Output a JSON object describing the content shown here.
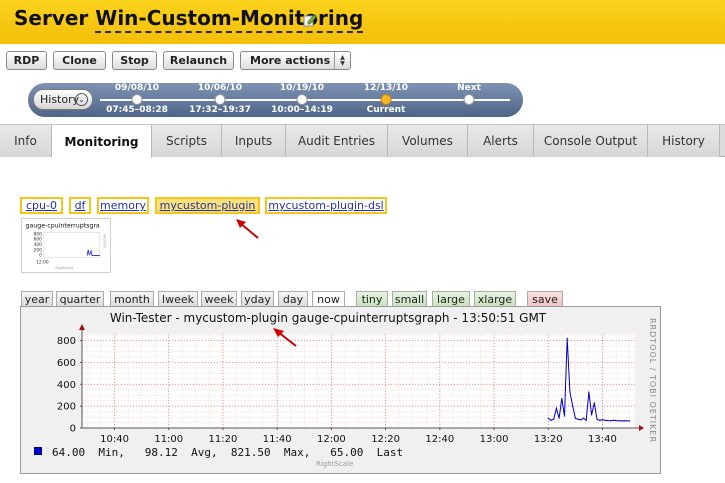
{
  "header": {
    "prefix": "Server ",
    "name": "Win-Custom-Monitoring"
  },
  "toolbar": {
    "rdp": "RDP",
    "clone": "Clone",
    "stop": "Stop",
    "relaunch": "Relaunch",
    "more_actions": "More actions"
  },
  "history": {
    "button": "History",
    "points": [
      {
        "date": "09/08/10",
        "time": "07:45–08:28",
        "current": false
      },
      {
        "date": "10/06/10",
        "time": "17:32–19:37",
        "current": false
      },
      {
        "date": "10/19/10",
        "time": "10:00–14:19",
        "current": false
      },
      {
        "date": "12/13/10",
        "time": "Current",
        "current": true
      },
      {
        "date": "Next",
        "time": "",
        "current": false
      }
    ]
  },
  "tabs": [
    "Info",
    "Monitoring",
    "Scripts",
    "Inputs",
    "Audit Entries",
    "Volumes",
    "Alerts",
    "Console Output",
    "History"
  ],
  "active_tab": "Monitoring",
  "plugins": [
    "cpu-0",
    "df",
    "memory",
    "mycustom-plugin",
    "mycustom-plugin-dsl"
  ],
  "selected_plugin": "mycustom-plugin",
  "thumbnail": {
    "label": "gauge-cpuinterruptsgra",
    "yticks": [
      "800",
      "600",
      "400",
      "200",
      "0"
    ],
    "xtick": "12:00",
    "credit": "RightScale"
  },
  "ranges": [
    "year",
    "quarter",
    "month",
    "lweek",
    "week",
    "yday",
    "day",
    "now"
  ],
  "active_range": "now",
  "sizes": [
    "tiny",
    "small",
    "large",
    "xlarge"
  ],
  "save": "save",
  "graph": {
    "title": "Win-Tester - mycustom-plugin gauge-cpuinterruptsgraph - 13:50:51 GMT",
    "side_text": "RRDTOOL / TOBI OETIKER",
    "legend": {
      "color": "#0000cc",
      "min_value": "64.00",
      "min_label": "Min,",
      "avg_value": "98.12",
      "avg_label": "Avg,",
      "max_value": "821.50",
      "max_label": "Max,",
      "last_value": "65.00",
      "last_label": "Last"
    },
    "credit": "RightScale"
  },
  "chart_data": {
    "type": "line",
    "title": "Win-Tester - mycustom-plugin gauge-cpuinterruptsgraph - 13:50:51 GMT",
    "xlabel": "",
    "ylabel": "",
    "x_ticks": [
      "10:40",
      "11:00",
      "11:20",
      "11:40",
      "12:00",
      "12:20",
      "12:40",
      "13:00",
      "13:20",
      "13:40"
    ],
    "y_ticks": [
      0,
      200,
      400,
      600,
      800
    ],
    "ylim": [
      0,
      860
    ],
    "grid": true,
    "series": [
      {
        "color": "#0000cc",
        "points": [
          [
            "13:20",
            90
          ],
          [
            "13:21",
            70
          ],
          [
            "13:22",
            80
          ],
          [
            "13:23",
            180
          ],
          [
            "13:24",
            90
          ],
          [
            "13:25",
            270
          ],
          [
            "13:26",
            110
          ],
          [
            "13:27",
            820
          ],
          [
            "13:28",
            330
          ],
          [
            "13:29",
            200
          ],
          [
            "13:30",
            90
          ],
          [
            "13:31",
            80
          ],
          [
            "13:32",
            75
          ],
          [
            "13:33",
            90
          ],
          [
            "13:34",
            70
          ],
          [
            "13:35",
            330
          ],
          [
            "13:36",
            120
          ],
          [
            "13:37",
            230
          ],
          [
            "13:38",
            80
          ],
          [
            "13:39",
            70
          ],
          [
            "13:40",
            75
          ],
          [
            "13:41",
            70
          ],
          [
            "13:42",
            68
          ],
          [
            "13:43",
            66
          ],
          [
            "13:44",
            70
          ],
          [
            "13:45",
            68
          ],
          [
            "13:46",
            66
          ],
          [
            "13:47",
            65
          ],
          [
            "13:48",
            66
          ],
          [
            "13:49",
            65
          ],
          [
            "13:50",
            65
          ]
        ]
      }
    ]
  }
}
